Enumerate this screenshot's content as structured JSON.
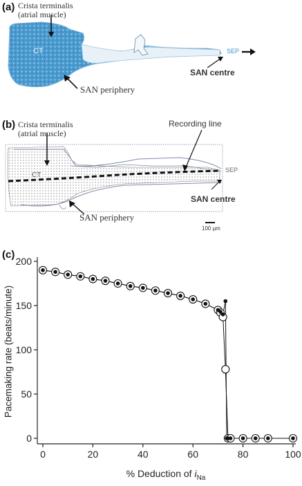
{
  "panel_a": {
    "letter": "(a)",
    "crista_label_line1": "Crista terminalis",
    "crista_label_line2": "(atrial muscle)",
    "ct_label": "CT",
    "sep_label": "SEP",
    "san_centre_label": "SAN centre",
    "san_periphery_label": "SAN periphery",
    "tissue_color": "#3a8fc4"
  },
  "panel_b": {
    "letter": "(b)",
    "crista_label_line1": "Crista terminalis",
    "crista_label_line2": "(atrial muscle)",
    "ct_label": "CT",
    "recording_line_label": "Recording line",
    "sep_label": "SEP",
    "san_centre_label": "SAN centre",
    "san_periphery_label": "SAN periphery",
    "scale_label": "100 µm"
  },
  "panel_c": {
    "letter": "(c)",
    "chart_data": {
      "type": "line",
      "ylabel": "Pacemaking rate (beats/minute)",
      "xlabel_prefix": "% Deduction of ",
      "xlabel_italic": "i",
      "xlabel_sub": "Na",
      "xlim": [
        0,
        100
      ],
      "ylim": [
        0,
        200
      ],
      "x_ticks": [
        0,
        20,
        40,
        60,
        80,
        100
      ],
      "y_ticks": [
        0,
        50,
        100,
        150,
        200
      ],
      "series": [
        {
          "marker": "filled",
          "x": [
            0,
            5,
            10,
            15,
            20,
            25,
            30,
            35,
            40,
            45,
            50,
            55,
            60,
            65,
            70,
            71,
            72,
            73,
            73.5,
            74,
            75,
            80,
            85,
            90,
            100
          ],
          "y": [
            190,
            188,
            185,
            183,
            180,
            178,
            175,
            172,
            170,
            167,
            164,
            161,
            157,
            152,
            145,
            143,
            140,
            155,
            0,
            0,
            0,
            0,
            0,
            0,
            0
          ]
        },
        {
          "marker": "open",
          "x": [
            0,
            5,
            10,
            15,
            20,
            25,
            30,
            35,
            40,
            45,
            50,
            55,
            60,
            65,
            70,
            71,
            72,
            73,
            74,
            75,
            80,
            85,
            90,
            100
          ],
          "y": [
            190,
            188,
            185,
            183,
            180,
            178,
            175,
            172,
            170,
            167,
            164,
            161,
            157,
            152,
            145,
            142,
            137,
            78,
            0,
            0,
            0,
            0,
            0,
            0
          ]
        }
      ]
    }
  }
}
